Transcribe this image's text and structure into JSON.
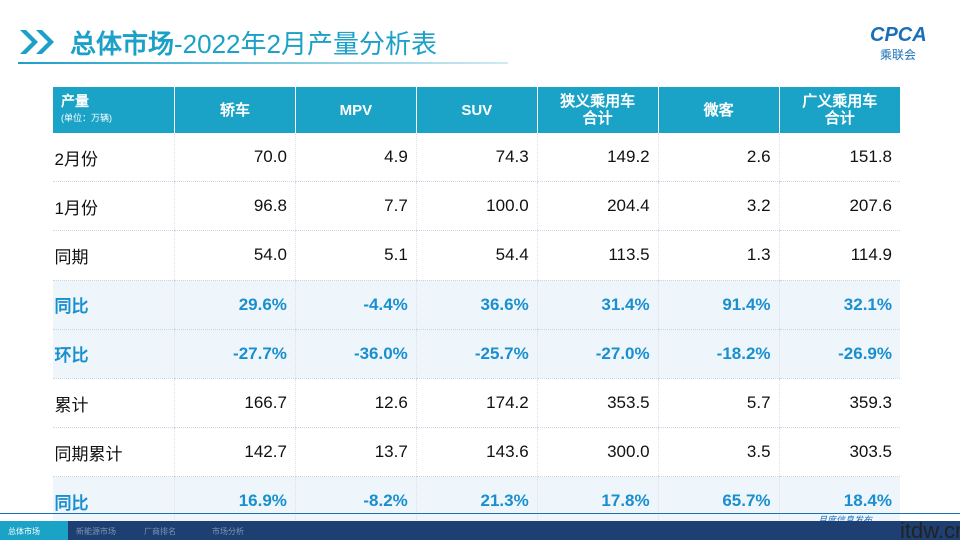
{
  "header": {
    "title_bold": "总体市场",
    "title_rest": "-2022年2月产量分析表",
    "logo": "CPCA",
    "logo_sub": "乘联会"
  },
  "table": {
    "corner": "产量",
    "corner_unit": "(单位：万辆)",
    "columns": [
      [
        "轿车"
      ],
      [
        "MPV"
      ],
      [
        "SUV"
      ],
      [
        "狭义乘用车",
        "合计"
      ],
      [
        "微客"
      ],
      [
        "广义乘用车",
        "合计"
      ]
    ],
    "rows": [
      [
        "2月份",
        "70.0",
        "4.9",
        "74.3",
        "149.2",
        "2.6",
        "151.8"
      ],
      [
        "1月份",
        "96.8",
        "7.7",
        "100.0",
        "204.4",
        "3.2",
        "207.6"
      ],
      [
        "同期",
        "54.0",
        "5.1",
        "54.4",
        "113.5",
        "1.3",
        "114.9"
      ],
      [
        "同比",
        "29.6%",
        "-4.4%",
        "36.6%",
        "31.4%",
        "91.4%",
        "32.1%"
      ],
      [
        "环比",
        "-27.7%",
        "-36.0%",
        "-25.7%",
        "-27.0%",
        "-18.2%",
        "-26.9%"
      ],
      [
        "累计",
        "166.7",
        "12.6",
        "174.2",
        "353.5",
        "5.7",
        "359.3"
      ],
      [
        "同期累计",
        "142.7",
        "13.7",
        "143.6",
        "300.0",
        "3.5",
        "303.5"
      ],
      [
        "同比",
        "16.9%",
        "-8.2%",
        "21.3%",
        "17.8%",
        "65.7%",
        "18.4%"
      ]
    ]
  },
  "footer": {
    "tabs": [
      "总体市场",
      "新能源市场",
      "厂商排名",
      "市场分析"
    ],
    "note": "月度信息发布",
    "watermark": "itdw.cn"
  }
}
